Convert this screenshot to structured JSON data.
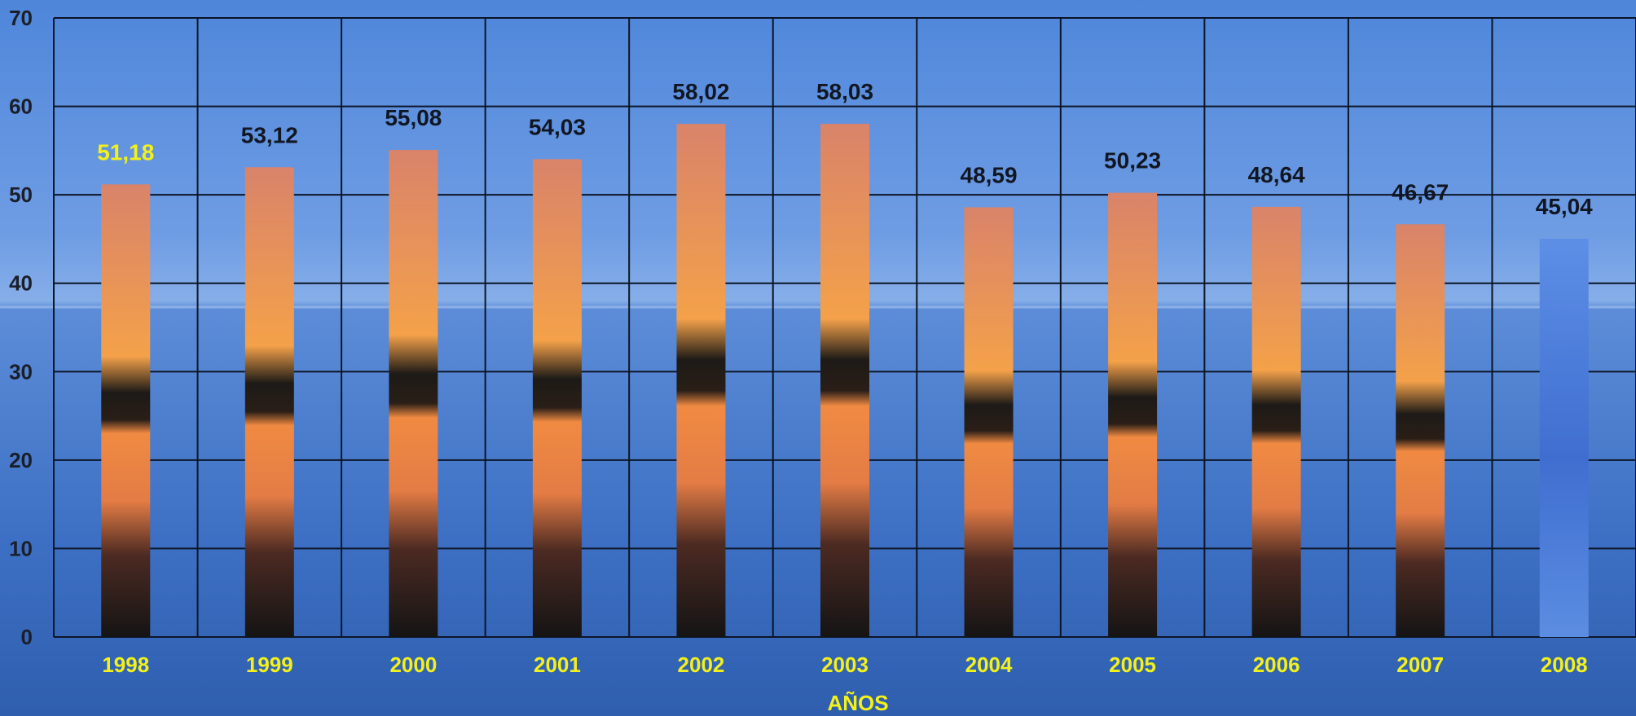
{
  "chart_data": {
    "type": "bar",
    "title": "",
    "xlabel": "AÑOS",
    "ylabel": "",
    "ylim": [
      0,
      70
    ],
    "y_ticks": [
      "0",
      "10",
      "20",
      "30",
      "40",
      "50",
      "60",
      "70"
    ],
    "grid": true,
    "categories": [
      "1998",
      "1999",
      "2000",
      "2001",
      "2002",
      "2003",
      "2004",
      "2005",
      "2006",
      "2007",
      "2008"
    ],
    "values": [
      51.18,
      53.12,
      55.08,
      54.03,
      58.02,
      58.03,
      48.59,
      50.23,
      48.64,
      46.67,
      45.04
    ],
    "data_labels": [
      "51,18",
      "53,12",
      "55,08",
      "54,03",
      "58,02",
      "58,03",
      "48,59",
      "50,23",
      "48,64",
      "46,67",
      "45,04"
    ],
    "highlight_label_index": 0,
    "colors": {
      "sky_top": "#5a8fe0",
      "sky_mid": "#6f9de4",
      "water": "#3f74c8",
      "water_deep": "#2c5caa",
      "grid": "#0c1526",
      "sunset_top": "#e9845a",
      "sunset_mid": "#f39a4b",
      "bar_dark": "#151515",
      "bar_2008": "#4f7fd8",
      "year_label": "#f3f01a",
      "tick_label": "#1b1f2a"
    }
  }
}
